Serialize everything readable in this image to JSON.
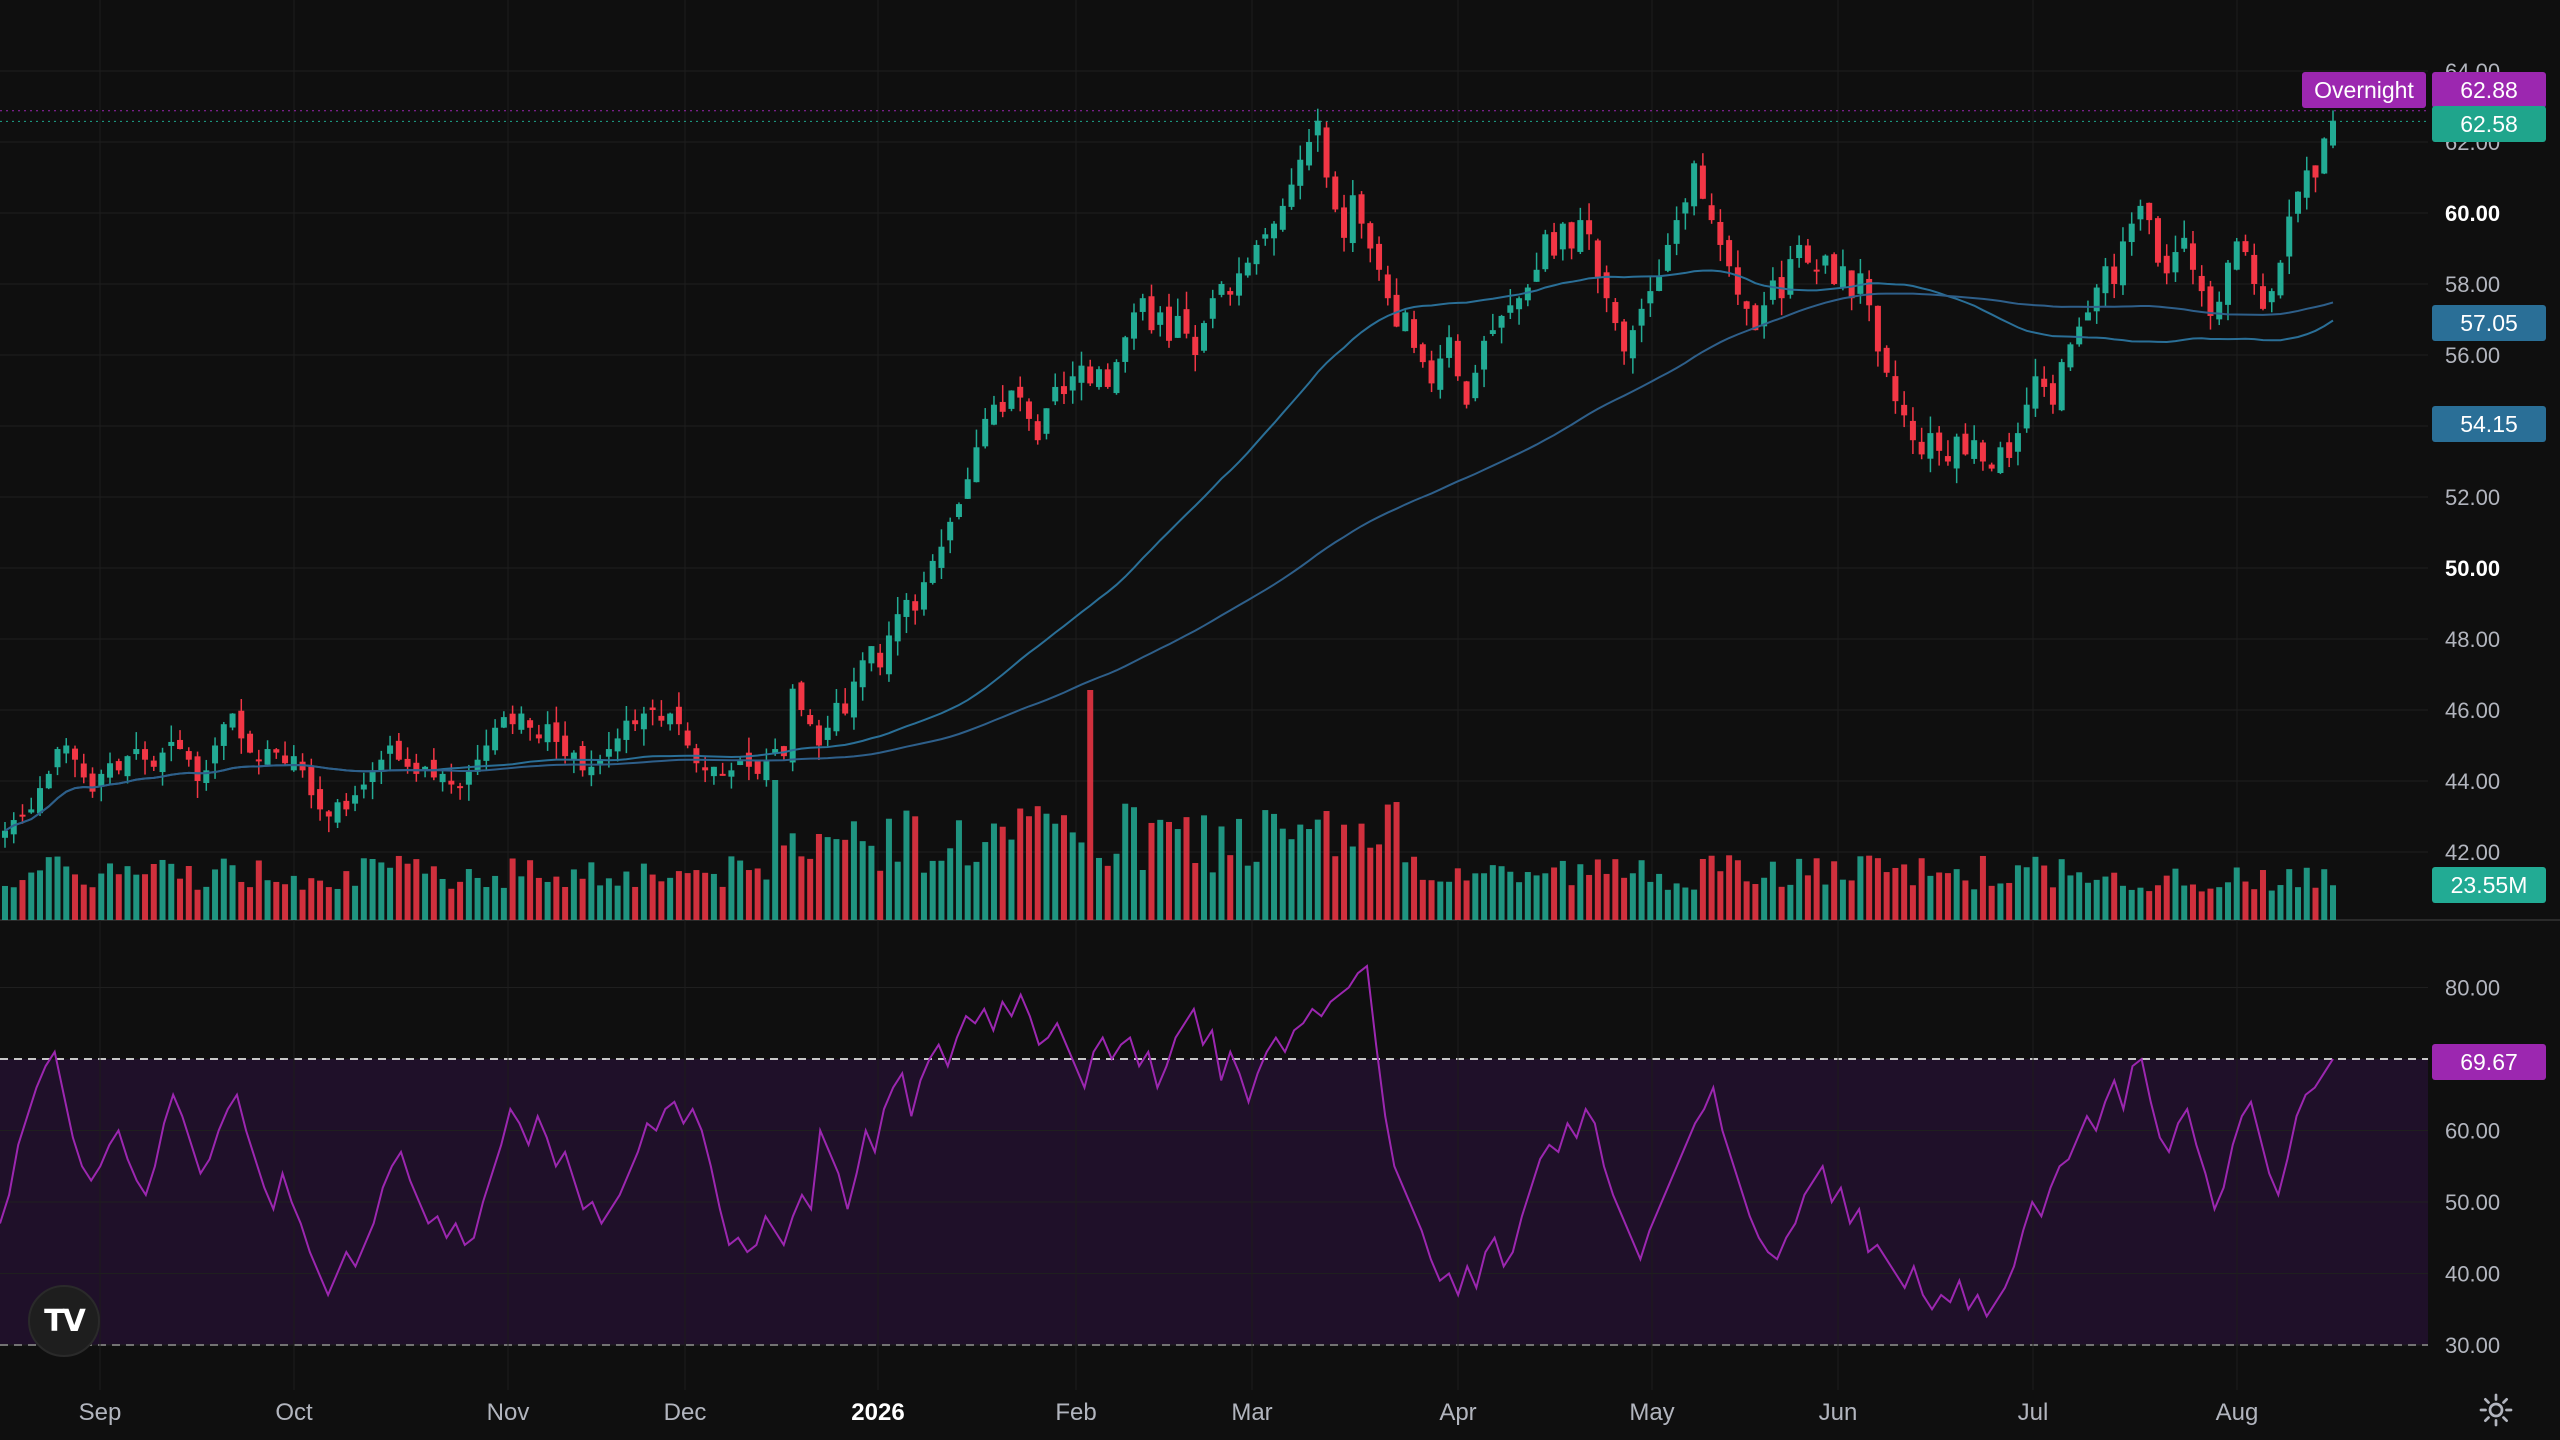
{
  "chart_data": [
    {
      "type": "candlestick",
      "price_axis": {
        "ticks": [
          "64.00",
          "62.00",
          "60.00",
          "58.00",
          "56.00",
          "54.00",
          "52.00",
          "50.00",
          "48.00",
          "46.00",
          "44.00",
          "42.00"
        ],
        "range": [
          41.0,
          64.8
        ]
      },
      "time_axis": {
        "labels": [
          "Sep",
          "Oct",
          "Nov",
          "Dec",
          "2026",
          "Feb",
          "Mar",
          "Apr",
          "May",
          "Jun",
          "Jul",
          "Aug"
        ]
      },
      "ohlc_close": [
        42.6,
        42.9,
        43.0,
        43.2,
        43.8,
        44.2,
        44.9,
        45.0,
        44.6,
        44.1,
        43.7,
        44.2,
        44.5,
        44.3,
        44.7,
        44.9,
        44.6,
        44.4,
        44.8,
        45.1,
        44.9,
        44.6,
        44.0,
        44.3,
        45.0,
        45.6,
        45.9,
        45.2,
        44.8,
        44.6,
        44.9,
        44.8,
        44.5,
        44.7,
        44.3,
        43.6,
        43.2,
        43.0,
        43.4,
        43.2,
        43.6,
        43.9,
        44.3,
        44.6,
        45.0,
        44.6,
        44.4,
        44.2,
        44.4,
        44.1,
        44.2,
        43.9,
        43.8,
        44.3,
        44.6,
        45.0,
        45.5,
        45.8,
        45.6,
        45.9,
        45.5,
        45.2,
        45.6,
        45.1,
        44.7,
        44.8,
        44.3,
        44.4,
        44.6,
        44.9,
        45.2,
        45.7,
        45.6,
        45.9,
        46.0,
        45.7,
        45.9,
        45.6,
        45.0,
        44.5,
        44.3,
        44.4,
        44.2,
        44.3,
        44.6,
        44.4,
        44.2,
        44.6,
        44.9,
        44.7,
        46.6,
        46.0,
        45.6,
        45.0,
        45.5,
        46.2,
        45.9,
        46.8,
        47.4,
        47.8,
        47.2,
        48.1,
        48.7,
        49.1,
        48.8,
        49.6,
        50.2,
        50.6,
        51.3,
        51.8,
        52.5,
        53.4,
        54.2,
        54.6,
        54.4,
        55.0,
        54.8,
        54.2,
        53.6,
        54.5,
        55.1,
        54.9,
        55.4,
        55.7,
        55.2,
        55.6,
        55.1,
        55.8,
        56.5,
        57.2,
        57.6,
        56.7,
        57.2,
        56.4,
        57.1,
        56.6,
        56.0,
        56.9,
        57.6,
        58.0,
        57.7,
        58.3,
        58.6,
        59.1,
        59.4,
        59.7,
        60.2,
        60.8,
        61.5,
        62.0,
        62.6,
        61.0,
        60.1,
        59.3,
        60.5,
        59.7,
        59.0,
        58.4,
        57.6,
        56.8,
        57.2,
        56.2,
        55.8,
        55.2,
        55.9,
        56.5,
        55.4,
        54.6,
        55.5,
        56.4,
        56.7,
        57.1,
        57.4,
        57.6,
        57.9,
        58.4,
        59.4,
        58.8,
        59.7,
        59.0,
        59.8,
        59.4,
        58.2,
        57.6,
        56.9,
        56.1,
        56.7,
        57.3,
        57.8,
        58.2,
        59.1,
        59.8,
        60.3,
        61.4,
        60.4,
        59.8,
        59.1,
        58.5,
        57.7,
        57.3,
        56.7,
        57.4,
        58.1,
        57.6,
        58.7,
        59.1,
        58.6,
        58.4,
        58.8,
        58.0,
        58.5,
        57.6,
        58.3,
        57.4,
        56.1,
        55.5,
        54.7,
        54.3,
        53.6,
        53.2,
        53.8,
        53.3,
        53.0,
        53.7,
        53.2,
        53.6,
        53.0,
        52.8,
        53.4,
        53.1,
        53.8,
        54.6,
        55.4,
        55.1,
        54.6,
        55.8,
        56.3,
        56.8,
        57.2,
        57.9,
        58.5,
        58.0,
        59.2,
        59.7,
        60.2,
        59.8,
        58.6,
        58.3,
        58.9,
        59.3,
        58.4,
        57.8,
        57.1,
        57.5,
        58.6,
        59.2,
        58.9,
        58.0,
        57.3,
        57.8,
        58.6,
        59.9,
        60.6,
        61.2,
        61.0,
        62.1,
        62.6
      ],
      "sma_50_last": 57.05,
      "sma_200_last": 54.15,
      "last_price": 62.58,
      "overnight_label": "Overnight",
      "overnight_price": 62.88,
      "volume_last": "23.55M",
      "colors": {
        "up": "#22ab94",
        "down": "#f23645",
        "sma_fast": "#2a6f97",
        "sma_slow": "#2e5f8a",
        "last": "#1fa58c",
        "overnight": "#9c27b0",
        "sma_badge": "#2a6f97"
      }
    },
    {
      "type": "line",
      "name": "RSI",
      "ticks": [
        "80.00",
        "60.00",
        "50.00",
        "40.00",
        "30.00"
      ],
      "range": [
        27,
        84
      ],
      "upper_band": 70,
      "lower_band": 30,
      "last_value": "69.67",
      "values": [
        47,
        51,
        58,
        62,
        66,
        69,
        71,
        65,
        59,
        55,
        53,
        55,
        58,
        60,
        56,
        53,
        51,
        55,
        61,
        65,
        62,
        58,
        54,
        56,
        60,
        63,
        65,
        60,
        56,
        52,
        49,
        54,
        50,
        47,
        43,
        40,
        37,
        40,
        43,
        41,
        44,
        47,
        52,
        55,
        57,
        53,
        50,
        47,
        48,
        45,
        47,
        44,
        45,
        50,
        54,
        58,
        63,
        61,
        58,
        62,
        59,
        55,
        57,
        53,
        49,
        50,
        47,
        49,
        51,
        54,
        57,
        61,
        60,
        63,
        64,
        61,
        63,
        60,
        55,
        49,
        44,
        45,
        43,
        44,
        48,
        46,
        44,
        48,
        51,
        49,
        60,
        57,
        54,
        49,
        54,
        60,
        57,
        63,
        66,
        68,
        62,
        67,
        70,
        72,
        69,
        73,
        76,
        75,
        77,
        74,
        78,
        76,
        79,
        76,
        72,
        73,
        75,
        72,
        69,
        66,
        71,
        73,
        70,
        72,
        73,
        69,
        71,
        66,
        69,
        73,
        75,
        77,
        72,
        74,
        67,
        71,
        68,
        64,
        68,
        71,
        73,
        71,
        74,
        75,
        77,
        76,
        78,
        79,
        80,
        82,
        83,
        72,
        62,
        55,
        52,
        49,
        46,
        42,
        39,
        40,
        37,
        41,
        38,
        43,
        45,
        41,
        43,
        48,
        52,
        56,
        58,
        57,
        61,
        59,
        63,
        61,
        55,
        51,
        48,
        45,
        42,
        46,
        49,
        52,
        55,
        58,
        61,
        63,
        66,
        60,
        56,
        52,
        48,
        45,
        43,
        42,
        45,
        47,
        51,
        53,
        55,
        50,
        52,
        47,
        49,
        43,
        44,
        42,
        40,
        38,
        41,
        37,
        35,
        37,
        36,
        39,
        35,
        37,
        34,
        36,
        38,
        41,
        46,
        50,
        48,
        52,
        55,
        56,
        59,
        62,
        60,
        64,
        67,
        63,
        69,
        70,
        64,
        59,
        57,
        61,
        63,
        58,
        54,
        49,
        52,
        58,
        62,
        64,
        59,
        54,
        51,
        56,
        62,
        65,
        66,
        68,
        70
      ],
      "colors": {
        "line": "#9c27b0",
        "band_fill": "#1f1029",
        "badge": "#9c27b0"
      }
    }
  ]
}
